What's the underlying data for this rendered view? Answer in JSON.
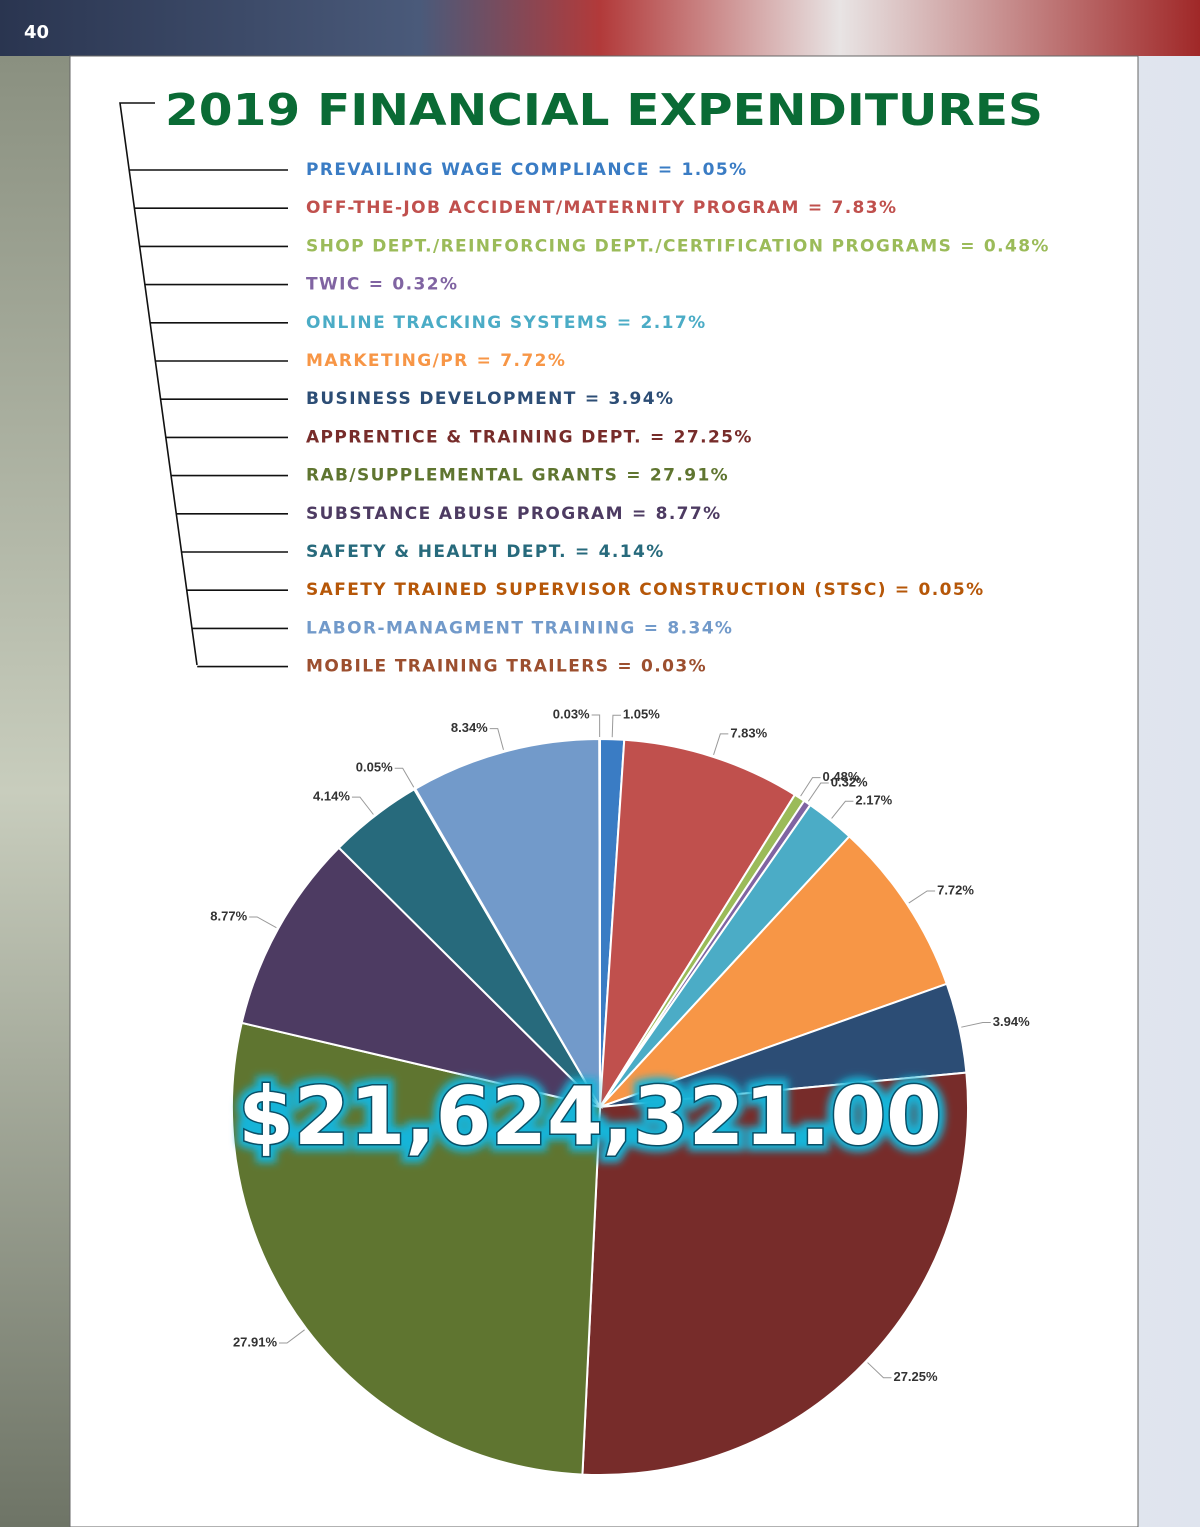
{
  "page_number": "40",
  "chart_data": {
    "type": "pie",
    "title": "2019 FINANCIAL EXPENDITURES",
    "categories": [
      "PREVAILING WAGE COMPLIANCE",
      "OFF-THE-JOB ACCIDENT/MATERNITY PROGRAM",
      "SHOP DEPT./REINFORCING DEPT./CERTIFICATION PROGRAMS",
      "TWIC",
      "ONLINE TRACKING SYSTEMS",
      "MARKETING/PR",
      "BUSINESS DEVELOPMENT",
      "APPRENTICE & TRAINING DEPT.",
      "RAB/SUPPLEMENTAL GRANTS",
      "SUBSTANCE ABUSE PROGRAM",
      "SAFETY & HEALTH DEPT.",
      "SAFETY TRAINED SUPERVISOR CONSTRUCTION (STSC)",
      "LABOR-MANAGMENT TRAINING",
      "MOBILE TRAINING TRAILERS"
    ],
    "values": [
      1.05,
      7.83,
      0.48,
      0.32,
      2.17,
      7.72,
      3.94,
      27.25,
      27.91,
      8.77,
      4.14,
      0.05,
      8.34,
      0.03
    ],
    "value_labels": [
      "1.05%",
      "7.83%",
      "0.48%",
      "0.32%",
      "2.17%",
      "7.72%",
      "3.94%",
      "27.25%",
      "27.91%",
      "8.77%",
      "4.14%",
      "0.05%",
      "8.34%",
      "0.03%"
    ],
    "colors": [
      "#3a7cc4",
      "#c0504d",
      "#9bbb59",
      "#8064a2",
      "#4bacc6",
      "#f79646",
      "#2c4d75",
      "#772c2a",
      "#5f7530",
      "#4d3b62",
      "#276a7c",
      "#b65708",
      "#729aca",
      "#9c4f2f"
    ],
    "legend_separator": "=",
    "center_label": "$21,624,321.00"
  }
}
